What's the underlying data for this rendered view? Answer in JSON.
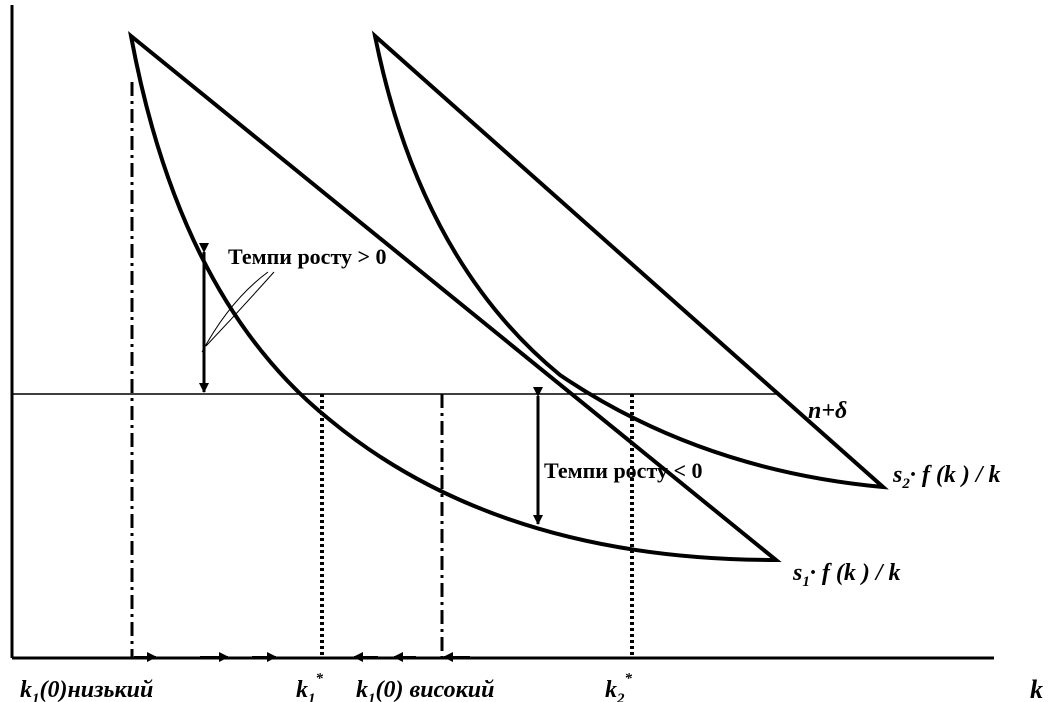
{
  "labels": {
    "horizontal_line": "n+δ",
    "x_axis": "k",
    "growth_positive": "Темпи росту > 0",
    "growth_negative": "Темпи росту < 0",
    "curve1": {
      "s": "s",
      "sub": "1",
      "rest": "· f (k ) / k"
    },
    "curve2": {
      "s": "s",
      "sub": "2",
      "rest": "· f (k ) / k"
    },
    "k_low": {
      "k": "k",
      "sub": "1",
      "rest": "(0)низький"
    },
    "k1_star": {
      "k": "k",
      "sub": "1",
      "sup": "*"
    },
    "k_high": {
      "k": "k",
      "sub": "1",
      "rest": "(0) високий"
    },
    "k2_star": {
      "k": "k",
      "sub": "2",
      "sup": "*"
    }
  }
}
